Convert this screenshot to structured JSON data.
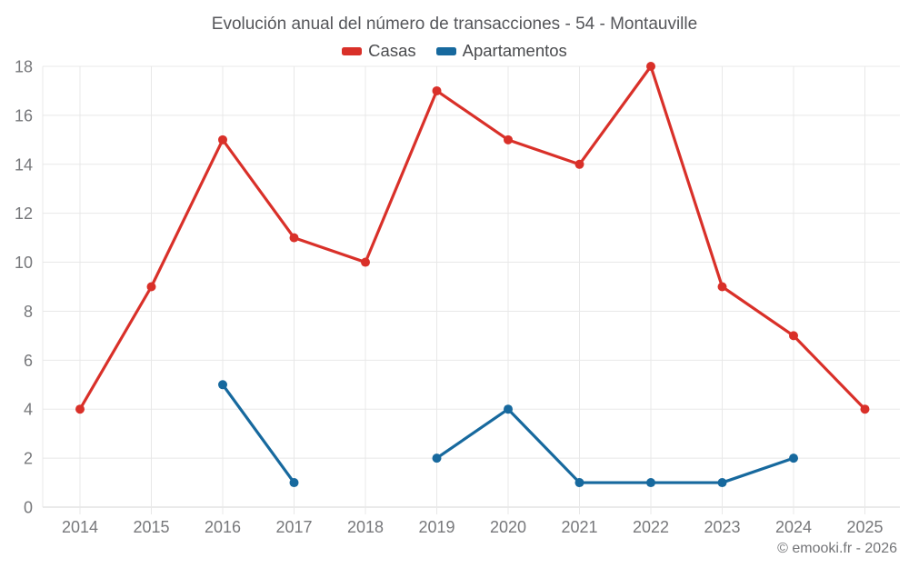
{
  "title": "Evolución anual del número de transacciones - 54 - Montauville",
  "attribution": "© emooki.fr - 2026",
  "legend": [
    {
      "label": "Casas",
      "color": "#d93029"
    },
    {
      "label": "Apartamentos",
      "color": "#17699e"
    }
  ],
  "colors": {
    "casas": "#d93029",
    "apartamentos": "#17699e",
    "gridline": "#e8e8e8",
    "baseline": "#d6d6d6",
    "axis_text": "#77787b",
    "title_text": "#55565a"
  },
  "chart_data": {
    "type": "line",
    "title": "Evolución anual del número de transacciones - 54 - Montauville",
    "x": [
      2014,
      2015,
      2016,
      2017,
      2018,
      2019,
      2020,
      2021,
      2022,
      2023,
      2024,
      2025
    ],
    "series": [
      {
        "name": "Casas",
        "color": "#d93029",
        "values": [
          4,
          9,
          15,
          11,
          10,
          17,
          15,
          14,
          18,
          9,
          7,
          4
        ]
      },
      {
        "name": "Apartamentos",
        "color": "#17699e",
        "values": [
          null,
          null,
          5,
          1,
          null,
          2,
          4,
          1,
          1,
          1,
          2,
          null
        ]
      }
    ],
    "xlabel": "",
    "ylabel": "",
    "ylim": [
      0,
      18
    ],
    "yticks": [
      0,
      2,
      4,
      6,
      8,
      10,
      12,
      14,
      16,
      18
    ],
    "grid": true,
    "legend_position": "top"
  }
}
